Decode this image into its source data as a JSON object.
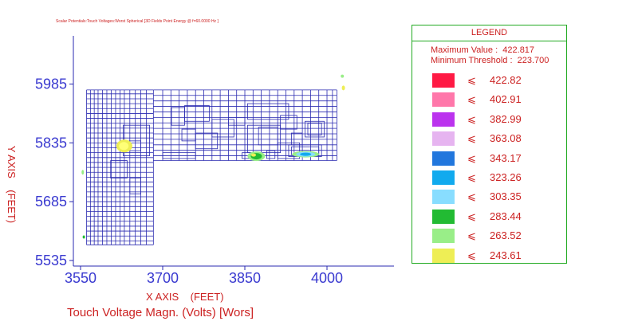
{
  "header": {
    "tiny_title": "Scalar Potentials:Touch Voltages:Worst Spherical [3D Fields Point Energy @ f=60.0000 Hz ]"
  },
  "chart_data": {
    "type": "heatmap",
    "xlabel": "X AXIS    (FEET)",
    "ylabel": "Y AXIS    (FEET)",
    "subtitle": "Touch Voltage Magn. (Volts) [Wors]",
    "x_ticks": [
      3550,
      3700,
      3850,
      4000
    ],
    "y_ticks": [
      5985,
      5835,
      5685,
      5535
    ],
    "xlim": [
      3550,
      4035
    ],
    "ylim": [
      5515,
      6090
    ],
    "legend": {
      "title": "LEGEND",
      "max_label": "Maximum Value :",
      "max_value": "422.817",
      "min_label": "Minimum Threshold :",
      "min_value": "223.700",
      "levels": [
        {
          "value": "422.82",
          "color": "#ff1a44"
        },
        {
          "value": "402.91",
          "color": "#ff77aa"
        },
        {
          "value": "382.99",
          "color": "#bb33ee"
        },
        {
          "value": "363.08",
          "color": "#e6b4f0"
        },
        {
          "value": "343.17",
          "color": "#2277dd"
        },
        {
          "value": "323.26",
          "color": "#11aaee"
        },
        {
          "value": "303.35",
          "color": "#88ddff"
        },
        {
          "value": "283.44",
          "color": "#22bb33"
        },
        {
          "value": "263.52",
          "color": "#99ee88"
        },
        {
          "value": "243.61",
          "color": "#eeee55"
        }
      ],
      "leq_symbol": "⩽"
    },
    "grid_color": "#2a2ab0",
    "axis_color": "#2a2ab0"
  }
}
